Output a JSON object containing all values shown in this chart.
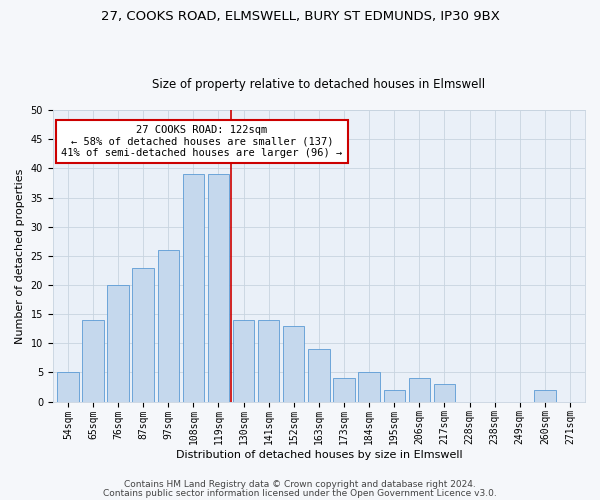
{
  "title1": "27, COOKS ROAD, ELMSWELL, BURY ST EDMUNDS, IP30 9BX",
  "title2": "Size of property relative to detached houses in Elmswell",
  "xlabel": "Distribution of detached houses by size in Elmswell",
  "ylabel": "Number of detached properties",
  "bar_color": "#c5d8ed",
  "bar_edge_color": "#5b9bd5",
  "background_color": "#eaf0f8",
  "fig_background_color": "#f5f7fa",
  "categories": [
    "54sqm",
    "65sqm",
    "76sqm",
    "87sqm",
    "97sqm",
    "108sqm",
    "119sqm",
    "130sqm",
    "141sqm",
    "152sqm",
    "163sqm",
    "173sqm",
    "184sqm",
    "195sqm",
    "206sqm",
    "217sqm",
    "228sqm",
    "238sqm",
    "249sqm",
    "260sqm",
    "271sqm"
  ],
  "values": [
    5,
    14,
    20,
    23,
    26,
    39,
    39,
    14,
    14,
    13,
    9,
    4,
    5,
    2,
    4,
    3,
    0,
    0,
    0,
    2,
    0
  ],
  "ylim": [
    0,
    50
  ],
  "yticks": [
    0,
    5,
    10,
    15,
    20,
    25,
    30,
    35,
    40,
    45,
    50
  ],
  "vline_x": 6.5,
  "annotation_text": "27 COOKS ROAD: 122sqm\n← 58% of detached houses are smaller (137)\n41% of semi-detached houses are larger (96) →",
  "annotation_box_color": "#ffffff",
  "annotation_box_edge": "#cc0000",
  "vline_color": "#cc0000",
  "footer1": "Contains HM Land Registry data © Crown copyright and database right 2024.",
  "footer2": "Contains public sector information licensed under the Open Government Licence v3.0.",
  "grid_color": "#c8d4e0",
  "title1_fontsize": 9.5,
  "title2_fontsize": 8.5,
  "axis_label_fontsize": 8,
  "tick_fontsize": 7,
  "annotation_fontsize": 7.5,
  "footer_fontsize": 6.5
}
